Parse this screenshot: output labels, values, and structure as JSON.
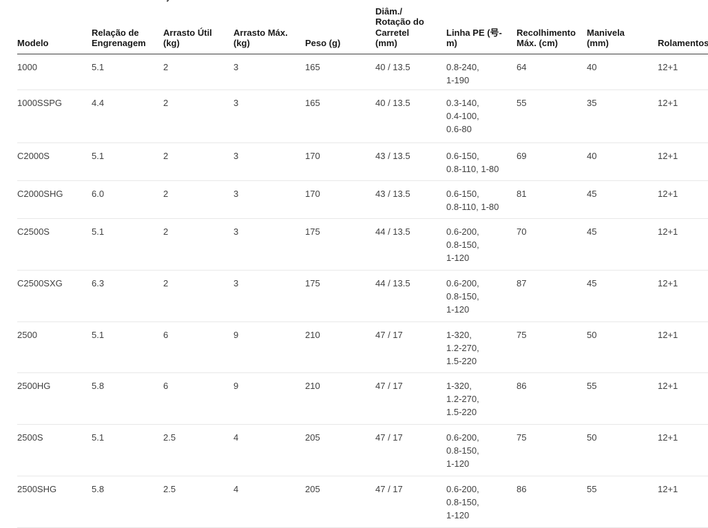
{
  "colors": {
    "background": "#ffffff",
    "header_text": "#191919",
    "body_text": "#3f3f3f",
    "header_border": "#3f3f3f",
    "row_border": "#e8e8e8"
  },
  "table": {
    "columns": [
      {
        "id": "modelo",
        "label": "Modelo"
      },
      {
        "id": "relacao",
        "label": "Relação de\nEngrenagem"
      },
      {
        "id": "arrasto_util",
        "label": "Arrasto Útil\n(kg)"
      },
      {
        "id": "arrasto_max",
        "label": "Arrasto Máx.\n(kg)"
      },
      {
        "id": "peso",
        "label": "Peso (g)"
      },
      {
        "id": "diam",
        "label": "Diâm./\nRotação do\nCarretel\n(mm)"
      },
      {
        "id": "linha",
        "label": "Linha PE (号-\nm)"
      },
      {
        "id": "recolhimento",
        "label": "Recolhimento\nMáx. (cm)"
      },
      {
        "id": "manivela",
        "label": "Manivela\n(mm)"
      },
      {
        "id": "rolamentos",
        "label": "Rolamentos"
      }
    ],
    "rows": [
      {
        "modelo": "1000",
        "relacao": "5.1",
        "arrasto_util": "2",
        "arrasto_max": "3",
        "peso": "165",
        "diam": "40 / 13.5",
        "linha": "0.8-240,\n1-190",
        "recolhimento": "64",
        "manivela": "40",
        "rolamentos": "12+1"
      },
      {
        "modelo": "1000SSPG",
        "relacao": "4.4",
        "arrasto_util": "2",
        "arrasto_max": "3",
        "peso": "165",
        "diam": "40 / 13.5",
        "linha": "0.3-140,\n0.4-100,\n0.6-80",
        "recolhimento": "55",
        "manivela": "35",
        "rolamentos": "12+1"
      },
      {
        "modelo": "C2000S",
        "relacao": "5.1",
        "arrasto_util": "2",
        "arrasto_max": "3",
        "peso": "170",
        "diam": "43 / 13.5",
        "linha": "0.6-150,\n0.8-110, 1-80",
        "recolhimento": "69",
        "manivela": "40",
        "rolamentos": "12+1"
      },
      {
        "modelo": "C2000SHG",
        "relacao": "6.0",
        "arrasto_util": "2",
        "arrasto_max": "3",
        "peso": "170",
        "diam": "43 / 13.5",
        "linha": "0.6-150,\n0.8-110, 1-80",
        "recolhimento": "81",
        "manivela": "45",
        "rolamentos": "12+1"
      },
      {
        "modelo": "C2500S",
        "relacao": "5.1",
        "arrasto_util": "2",
        "arrasto_max": "3",
        "peso": "175",
        "diam": "44 / 13.5",
        "linha": "0.6-200,\n0.8-150,\n1-120",
        "recolhimento": "70",
        "manivela": "45",
        "rolamentos": "12+1"
      },
      {
        "modelo": "C2500SXG",
        "relacao": "6.3",
        "arrasto_util": "2",
        "arrasto_max": "3",
        "peso": "175",
        "diam": "44 / 13.5",
        "linha": "0.6-200,\n0.8-150,\n1-120",
        "recolhimento": "87",
        "manivela": "45",
        "rolamentos": "12+1"
      },
      {
        "modelo": "2500",
        "relacao": "5.1",
        "arrasto_util": "6",
        "arrasto_max": "9",
        "peso": "210",
        "diam": "47 / 17",
        "linha": "1-320,\n1.2-270,\n1.5-220",
        "recolhimento": "75",
        "manivela": "50",
        "rolamentos": "12+1"
      },
      {
        "modelo": "2500HG",
        "relacao": "5.8",
        "arrasto_util": "6",
        "arrasto_max": "9",
        "peso": "210",
        "diam": "47 / 17",
        "linha": "1-320,\n1.2-270,\n1.5-220",
        "recolhimento": "86",
        "manivela": "55",
        "rolamentos": "12+1"
      },
      {
        "modelo": "2500S",
        "relacao": "5.1",
        "arrasto_util": "2.5",
        "arrasto_max": "4",
        "peso": "205",
        "diam": "47 / 17",
        "linha": "0.6-200,\n0.8-150,\n1-120",
        "recolhimento": "75",
        "manivela": "50",
        "rolamentos": "12+1"
      },
      {
        "modelo": "2500SHG",
        "relacao": "5.8",
        "arrasto_util": "2.5",
        "arrasto_max": "4",
        "peso": "205",
        "diam": "47 / 17",
        "linha": "0.6-200,\n0.8-150,\n1-120",
        "recolhimento": "86",
        "manivela": "55",
        "rolamentos": "12+1"
      }
    ]
  }
}
